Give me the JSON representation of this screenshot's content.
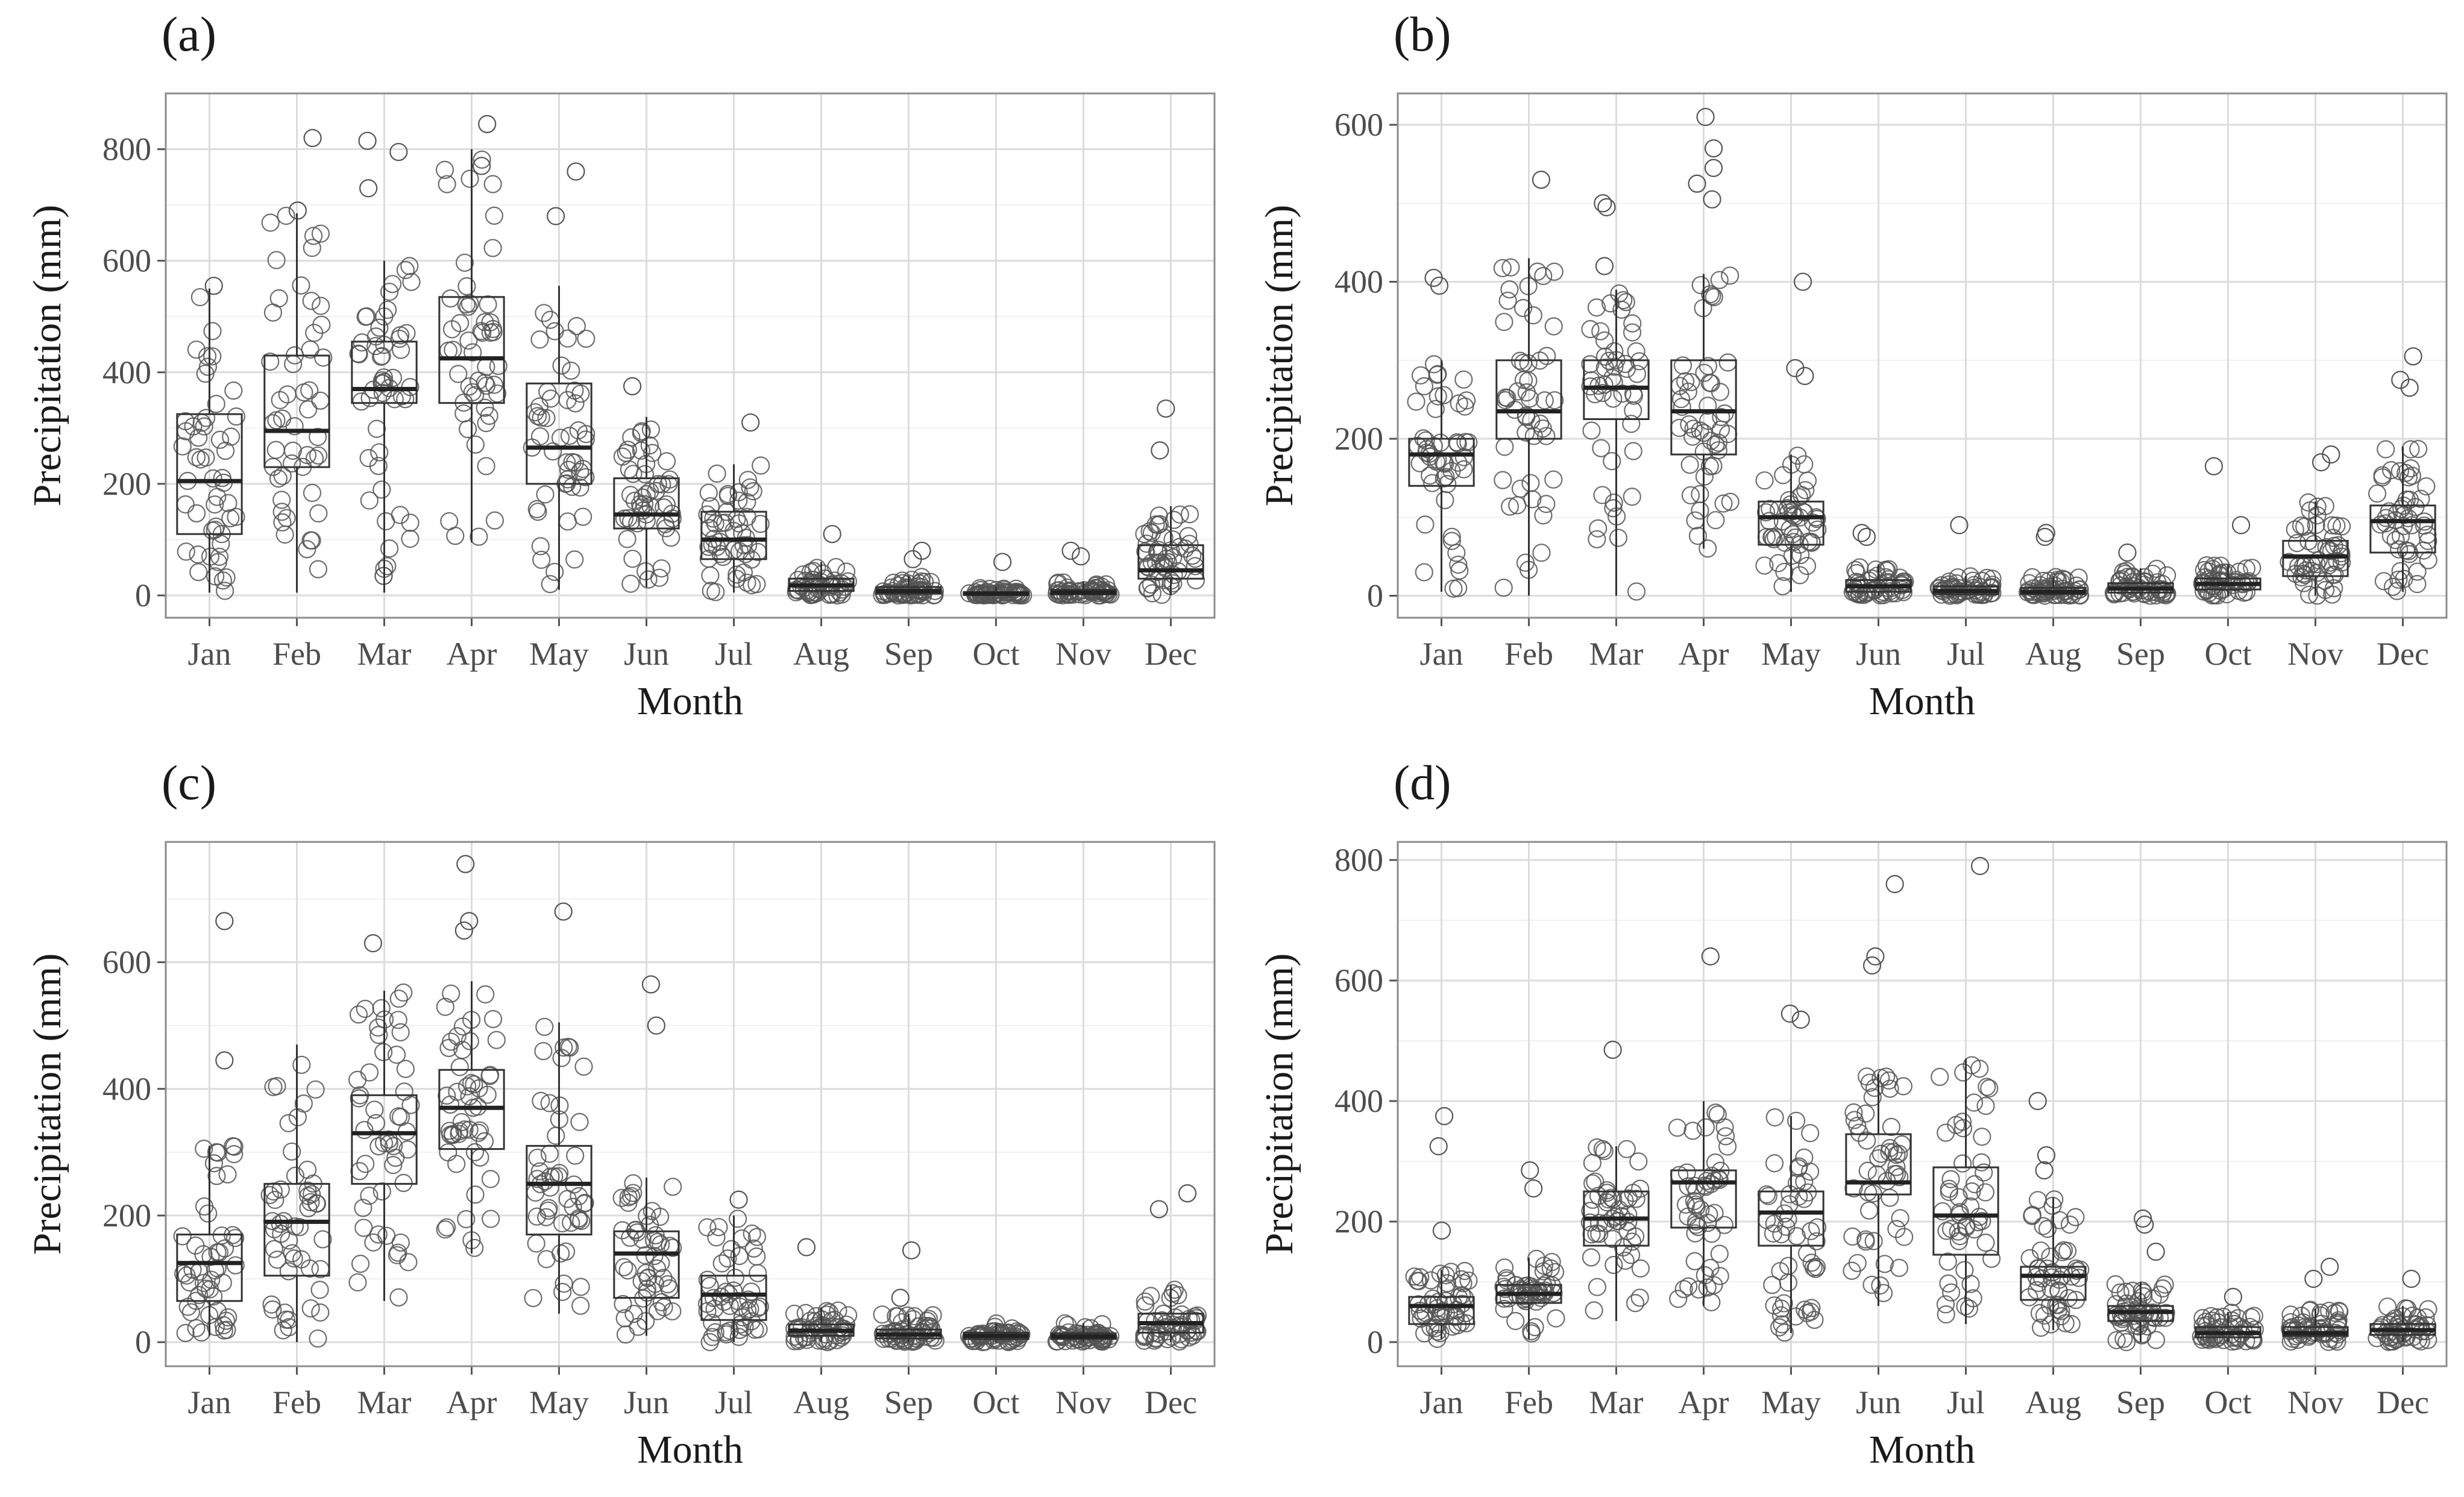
{
  "figure": {
    "panels": [
      {
        "id": "a",
        "label": "(a)"
      },
      {
        "id": "b",
        "label": "(b)"
      },
      {
        "id": "c",
        "label": "(c)"
      },
      {
        "id": "d",
        "label": "(d)"
      }
    ]
  },
  "chart_data": [
    {
      "type": "boxplot",
      "panel": "(a)",
      "xlabel": "Month",
      "ylabel": "Precipitation (mm)",
      "ylim": [
        -40,
        900
      ],
      "yticks": [
        0,
        200,
        400,
        600,
        800
      ],
      "grid": true,
      "categories": [
        "Jan",
        "Feb",
        "Mar",
        "Apr",
        "May",
        "Jun",
        "Jul",
        "Aug",
        "Sep",
        "Oct",
        "Nov",
        "Dec"
      ],
      "boxes": [
        {
          "min": 5,
          "q1": 110,
          "median": 205,
          "q3": 325,
          "max": 550
        },
        {
          "min": 5,
          "q1": 230,
          "median": 295,
          "q3": 430,
          "max": 685
        },
        {
          "min": 5,
          "q1": 345,
          "median": 370,
          "q3": 455,
          "max": 600
        },
        {
          "min": 95,
          "q1": 345,
          "median": 425,
          "q3": 535,
          "max": 800
        },
        {
          "min": 10,
          "q1": 200,
          "median": 265,
          "q3": 380,
          "max": 555
        },
        {
          "min": 15,
          "q1": 120,
          "median": 145,
          "q3": 210,
          "max": 320
        },
        {
          "min": 5,
          "q1": 65,
          "median": 100,
          "q3": 150,
          "max": 235
        },
        {
          "min": 0,
          "q1": 8,
          "median": 18,
          "q3": 30,
          "max": 60
        },
        {
          "min": 0,
          "q1": 3,
          "median": 8,
          "q3": 15,
          "max": 35
        },
        {
          "min": 0,
          "q1": 1,
          "median": 3,
          "q3": 6,
          "max": 15
        },
        {
          "min": 0,
          "q1": 2,
          "median": 5,
          "q3": 10,
          "max": 25
        },
        {
          "min": 0,
          "q1": 30,
          "median": 45,
          "q3": 90,
          "max": 160
        }
      ],
      "outliers": [
        [
          0,
          555
        ],
        [
          1,
          820
        ],
        [
          1,
          690
        ],
        [
          2,
          795
        ],
        [
          2,
          815
        ],
        [
          2,
          730
        ],
        [
          2,
          35
        ],
        [
          3,
          845
        ],
        [
          3,
          770
        ],
        [
          4,
          760
        ],
        [
          4,
          680
        ],
        [
          5,
          375
        ],
        [
          6,
          310
        ],
        [
          7,
          110
        ],
        [
          8,
          80
        ],
        [
          8,
          65
        ],
        [
          9,
          60
        ],
        [
          10,
          80
        ],
        [
          10,
          70
        ],
        [
          11,
          335
        ],
        [
          11,
          260
        ]
      ]
    },
    {
      "type": "boxplot",
      "panel": "(b)",
      "xlabel": "Month",
      "ylabel": "Precipitation (mm)",
      "ylim": [
        -28,
        640
      ],
      "yticks": [
        0,
        200,
        400,
        600
      ],
      "grid": true,
      "categories": [
        "Jan",
        "Feb",
        "Mar",
        "Apr",
        "May",
        "Jun",
        "Jul",
        "Aug",
        "Sep",
        "Oct",
        "Nov",
        "Dec"
      ],
      "boxes": [
        {
          "min": 5,
          "q1": 140,
          "median": 180,
          "q3": 200,
          "max": 300
        },
        {
          "min": 0,
          "q1": 200,
          "median": 235,
          "q3": 300,
          "max": 430
        },
        {
          "min": 0,
          "q1": 225,
          "median": 265,
          "q3": 300,
          "max": 390
        },
        {
          "min": 60,
          "q1": 180,
          "median": 235,
          "q3": 300,
          "max": 410
        },
        {
          "min": 5,
          "q1": 65,
          "median": 100,
          "q3": 120,
          "max": 180
        },
        {
          "min": 0,
          "q1": 5,
          "median": 12,
          "q3": 20,
          "max": 40
        },
        {
          "min": 0,
          "q1": 2,
          "median": 6,
          "q3": 12,
          "max": 25
        },
        {
          "min": 0,
          "q1": 2,
          "median": 5,
          "q3": 10,
          "max": 25
        },
        {
          "min": 0,
          "q1": 4,
          "median": 9,
          "q3": 16,
          "max": 35
        },
        {
          "min": 0,
          "q1": 8,
          "median": 15,
          "q3": 22,
          "max": 40
        },
        {
          "min": 0,
          "q1": 25,
          "median": 50,
          "q3": 70,
          "max": 120
        },
        {
          "min": 5,
          "q1": 55,
          "median": 95,
          "q3": 115,
          "max": 190
        }
      ],
      "outliers": [
        [
          0,
          405
        ],
        [
          0,
          395
        ],
        [
          1,
          530
        ],
        [
          2,
          500
        ],
        [
          2,
          495
        ],
        [
          2,
          420
        ],
        [
          3,
          610
        ],
        [
          3,
          570
        ],
        [
          3,
          545
        ],
        [
          3,
          525
        ],
        [
          3,
          505
        ],
        [
          4,
          400
        ],
        [
          4,
          290
        ],
        [
          4,
          280
        ],
        [
          5,
          80
        ],
        [
          5,
          75
        ],
        [
          6,
          90
        ],
        [
          7,
          80
        ],
        [
          7,
          75
        ],
        [
          8,
          55
        ],
        [
          9,
          165
        ],
        [
          9,
          90
        ],
        [
          10,
          180
        ],
        [
          10,
          170
        ],
        [
          11,
          305
        ],
        [
          11,
          275
        ],
        [
          11,
          265
        ]
      ]
    },
    {
      "type": "boxplot",
      "panel": "(c)",
      "xlabel": "Month",
      "ylabel": "Precipitation (mm)",
      "ylim": [
        -38,
        790
      ],
      "yticks": [
        0,
        200,
        400,
        600
      ],
      "grid": true,
      "categories": [
        "Jan",
        "Feb",
        "Mar",
        "Apr",
        "May",
        "Jun",
        "Jul",
        "Aug",
        "Sep",
        "Oct",
        "Nov",
        "Dec"
      ],
      "boxes": [
        {
          "min": 10,
          "q1": 65,
          "median": 125,
          "q3": 170,
          "max": 310
        },
        {
          "min": 0,
          "q1": 105,
          "median": 190,
          "q3": 250,
          "max": 470
        },
        {
          "min": 65,
          "q1": 250,
          "median": 330,
          "q3": 390,
          "max": 555
        },
        {
          "min": 140,
          "q1": 305,
          "median": 370,
          "q3": 430,
          "max": 570
        },
        {
          "min": 45,
          "q1": 170,
          "median": 250,
          "q3": 310,
          "max": 505
        },
        {
          "min": 10,
          "q1": 70,
          "median": 140,
          "q3": 175,
          "max": 260
        },
        {
          "min": 0,
          "q1": 35,
          "median": 75,
          "q3": 105,
          "max": 200
        },
        {
          "min": 0,
          "q1": 10,
          "median": 18,
          "q3": 28,
          "max": 55
        },
        {
          "min": 0,
          "q1": 6,
          "median": 12,
          "q3": 20,
          "max": 45
        },
        {
          "min": 0,
          "q1": 5,
          "median": 10,
          "q3": 15,
          "max": 30
        },
        {
          "min": 0,
          "q1": 5,
          "median": 9,
          "q3": 14,
          "max": 30
        },
        {
          "min": 0,
          "q1": 15,
          "median": 30,
          "q3": 45,
          "max": 90
        }
      ],
      "outliers": [
        [
          0,
          665
        ],
        [
          0,
          445
        ],
        [
          2,
          630
        ],
        [
          3,
          755
        ],
        [
          3,
          665
        ],
        [
          3,
          650
        ],
        [
          4,
          680
        ],
        [
          5,
          565
        ],
        [
          5,
          500
        ],
        [
          6,
          225
        ],
        [
          7,
          150
        ],
        [
          8,
          145
        ],
        [
          8,
          70
        ],
        [
          11,
          235
        ],
        [
          11,
          210
        ]
      ]
    },
    {
      "type": "boxplot",
      "panel": "(d)",
      "xlabel": "Month",
      "ylabel": "Precipitation (mm)",
      "ylim": [
        -40,
        830
      ],
      "yticks": [
        0,
        200,
        400,
        600,
        800
      ],
      "grid": true,
      "categories": [
        "Jan",
        "Feb",
        "Mar",
        "Apr",
        "May",
        "Jun",
        "Jul",
        "Aug",
        "Sep",
        "Oct",
        "Nov",
        "Dec"
      ],
      "boxes": [
        {
          "min": 5,
          "q1": 30,
          "median": 60,
          "q3": 75,
          "max": 120
        },
        {
          "min": 5,
          "q1": 65,
          "median": 80,
          "q3": 95,
          "max": 140
        },
        {
          "min": 35,
          "q1": 160,
          "median": 205,
          "q3": 250,
          "max": 325
        },
        {
          "min": 60,
          "q1": 190,
          "median": 265,
          "q3": 285,
          "max": 400
        },
        {
          "min": 15,
          "q1": 160,
          "median": 215,
          "q3": 250,
          "max": 375
        },
        {
          "min": 60,
          "q1": 245,
          "median": 265,
          "q3": 345,
          "max": 445
        },
        {
          "min": 30,
          "q1": 145,
          "median": 210,
          "q3": 290,
          "max": 470
        },
        {
          "min": 20,
          "q1": 70,
          "median": 110,
          "q3": 125,
          "max": 240
        },
        {
          "min": 0,
          "q1": 35,
          "median": 50,
          "q3": 60,
          "max": 100
        },
        {
          "min": 0,
          "q1": 8,
          "median": 15,
          "q3": 25,
          "max": 50
        },
        {
          "min": 0,
          "q1": 10,
          "median": 15,
          "q3": 25,
          "max": 55
        },
        {
          "min": 0,
          "q1": 12,
          "median": 20,
          "q3": 30,
          "max": 60
        }
      ],
      "outliers": [
        [
          0,
          375
        ],
        [
          0,
          325
        ],
        [
          0,
          185
        ],
        [
          1,
          285
        ],
        [
          1,
          255
        ],
        [
          2,
          485
        ],
        [
          3,
          640
        ],
        [
          4,
          545
        ],
        [
          4,
          535
        ],
        [
          5,
          760
        ],
        [
          5,
          640
        ],
        [
          5,
          625
        ],
        [
          6,
          790
        ],
        [
          7,
          400
        ],
        [
          7,
          310
        ],
        [
          7,
          285
        ],
        [
          8,
          205
        ],
        [
          8,
          195
        ],
        [
          8,
          150
        ],
        [
          9,
          75
        ],
        [
          10,
          125
        ],
        [
          10,
          105
        ],
        [
          11,
          105
        ]
      ]
    }
  ]
}
